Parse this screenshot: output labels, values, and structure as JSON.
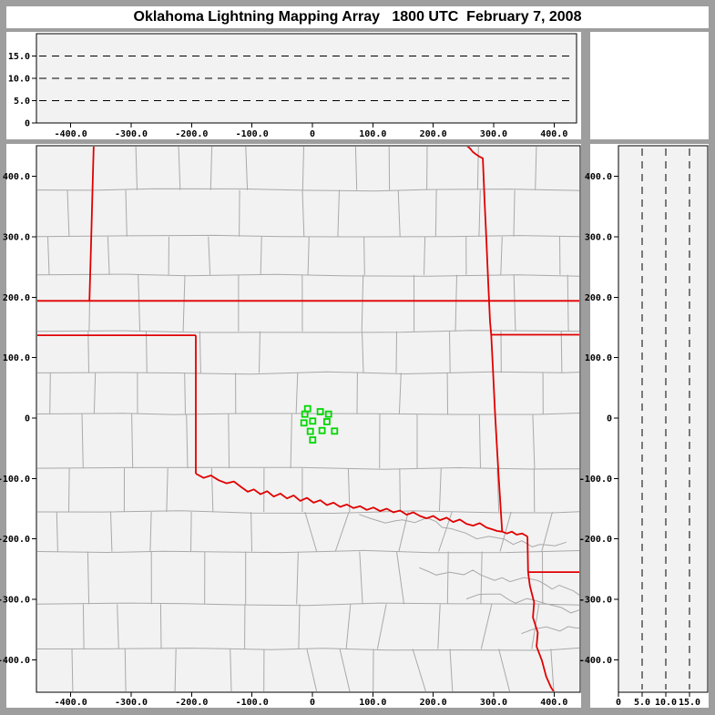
{
  "title": "Oklahoma Lightning Mapping Array   1800 UTC  February 7, 2008",
  "colors": {
    "frame_bg": "#9e9e9e",
    "widget_bg": "#ffffff",
    "plot_bg": "#f2f2f2",
    "axis": "#000000",
    "dash_line": "#000000",
    "county_line": "#a9a9a9",
    "state_line": "#e10000",
    "station": "#00d800",
    "label_text": "#000000"
  },
  "panels": {
    "top": {
      "name": "altitude-vs-east-west",
      "x_ticks": {
        "values": [
          -400,
          -300,
          -200,
          -100,
          0,
          100,
          200,
          300,
          400
        ],
        "labels": [
          "-400.0",
          "-300.0",
          "-200.0",
          "-100.0",
          "0",
          "100.0",
          "200.0",
          "300.0",
          "400.0"
        ]
      },
      "y_ticks": {
        "values": [
          0,
          5,
          10,
          15
        ],
        "labels": [
          "0",
          "5.0",
          "10.0",
          "15.0"
        ]
      },
      "gridlines_km": [
        5,
        10,
        15
      ],
      "alt_range_km": [
        0,
        20
      ]
    },
    "main": {
      "name": "plan-view-map",
      "x_ticks": {
        "values": [
          -400,
          -300,
          -200,
          -100,
          0,
          100,
          200,
          300,
          400
        ],
        "labels": [
          "-400.0",
          "-300.0",
          "-200.0",
          "-100.0",
          "0",
          "100.0",
          "200.0",
          "300.0",
          "400.0"
        ]
      },
      "y_ticks": {
        "values": [
          400,
          300,
          200,
          100,
          0,
          -100,
          -200,
          -300,
          -400
        ],
        "labels": [
          "400.0",
          "300.0",
          "200.0",
          "100.0",
          "0",
          "-100.0",
          "-200.0",
          "-300.0",
          "-400.0"
        ]
      },
      "ew_range_km": [
        -457,
        443
      ],
      "ns_range_km": [
        -454,
        451
      ]
    },
    "right": {
      "name": "altitude-vs-north-south",
      "x_ticks": {
        "values": [
          0,
          5,
          10,
          15
        ],
        "labels": [
          "0",
          "5.0",
          "10.0",
          "15.0"
        ]
      },
      "y_ticks": {
        "values": [
          400,
          300,
          200,
          100,
          0,
          -100,
          -200,
          -300,
          -400
        ],
        "labels": [
          "400.0",
          "300.0",
          "200.0",
          "100.0",
          "0",
          "-100.0",
          "-200.0",
          "-300.0",
          "-400.0"
        ]
      },
      "gridlines_km": [
        5,
        10,
        15
      ],
      "alt_range_km": [
        0,
        19
      ]
    },
    "corner": {
      "name": "blank-panel"
    }
  },
  "stations_km": [
    [
      -8,
      15.5
    ],
    [
      13,
      10.6
    ],
    [
      26.7,
      6.5
    ],
    [
      -12.5,
      6.5
    ],
    [
      0.5,
      -5
    ],
    [
      -14,
      -8
    ],
    [
      24,
      -6
    ],
    [
      -3.5,
      -22
    ],
    [
      16,
      -20.7
    ],
    [
      36.7,
      -21.6
    ],
    [
      0.5,
      -36.2
    ]
  ],
  "state_borders_km": [
    {
      "name": "kansas-south-37n",
      "pts": [
        [
          -458,
          194
        ],
        [
          445,
          194
        ]
      ]
    },
    {
      "name": "kansas-colorado",
      "pts": [
        [
          -362,
          452
        ],
        [
          -364,
          380
        ],
        [
          -366,
          300
        ],
        [
          -369,
          194
        ]
      ]
    },
    {
      "name": "panhandle-south-36-5n",
      "pts": [
        [
          -458,
          137
        ],
        [
          -193,
          137
        ]
      ]
    },
    {
      "name": "texas-oklahoma-100w",
      "pts": [
        [
          -193,
          137
        ],
        [
          -193,
          -92
        ]
      ]
    },
    {
      "name": "red-river",
      "pts": [
        [
          -193,
          -92
        ],
        [
          -180,
          -99
        ],
        [
          -168,
          -95
        ],
        [
          -155,
          -103
        ],
        [
          -142,
          -108
        ],
        [
          -130,
          -105
        ],
        [
          -118,
          -114
        ],
        [
          -107,
          -122
        ],
        [
          -97,
          -118
        ],
        [
          -86,
          -126
        ],
        [
          -75,
          -121
        ],
        [
          -64,
          -130
        ],
        [
          -53,
          -125
        ],
        [
          -42,
          -133
        ],
        [
          -31,
          -128
        ],
        [
          -20,
          -137
        ],
        [
          -9,
          -132
        ],
        [
          2,
          -140
        ],
        [
          13,
          -136
        ],
        [
          24,
          -144
        ],
        [
          35,
          -140
        ],
        [
          46,
          -147
        ],
        [
          57,
          -143
        ],
        [
          68,
          -149
        ],
        [
          79,
          -146
        ],
        [
          90,
          -152
        ],
        [
          101,
          -148
        ],
        [
          112,
          -154
        ],
        [
          123,
          -150
        ],
        [
          134,
          -156
        ],
        [
          145,
          -153
        ],
        [
          156,
          -160
        ],
        [
          167,
          -156
        ],
        [
          178,
          -162
        ],
        [
          189,
          -166
        ],
        [
          200,
          -162
        ],
        [
          211,
          -169
        ],
        [
          222,
          -165
        ],
        [
          233,
          -172
        ],
        [
          244,
          -168
        ],
        [
          255,
          -175
        ],
        [
          266,
          -178
        ],
        [
          277,
          -174
        ],
        [
          288,
          -181
        ],
        [
          297,
          -184
        ],
        [
          306,
          -187
        ],
        [
          314,
          -188
        ],
        [
          322,
          -191
        ],
        [
          330,
          -188
        ],
        [
          338,
          -193
        ],
        [
          347,
          -191
        ],
        [
          356,
          -196
        ]
      ]
    },
    {
      "name": "missouri-arkansas-east",
      "pts": [
        [
          253,
          452
        ],
        [
          258,
          449
        ],
        [
          262,
          445
        ],
        [
          265,
          441
        ],
        [
          270,
          437
        ],
        [
          276,
          433
        ],
        [
          282,
          430
        ],
        [
          285,
          360
        ],
        [
          288,
          295
        ],
        [
          291,
          225
        ],
        [
          294,
          160
        ],
        [
          296,
          138
        ],
        [
          299,
          78
        ],
        [
          302,
          14
        ],
        [
          305,
          -40
        ],
        [
          308,
          -92
        ],
        [
          311,
          -140
        ],
        [
          314,
          -188
        ]
      ]
    },
    {
      "name": "texas-arkansas",
      "pts": [
        [
          356,
          -196
        ],
        [
          357,
          -255
        ]
      ]
    },
    {
      "name": "arkansas-louisiana-33n",
      "pts": [
        [
          357,
          -255
        ],
        [
          445,
          -255
        ]
      ]
    },
    {
      "name": "missouri-arkansas-36-5n",
      "pts": [
        [
          296,
          138
        ],
        [
          445,
          138
        ]
      ]
    },
    {
      "name": "texas-louisiana",
      "pts": [
        [
          357,
          -255
        ],
        [
          360,
          -278
        ],
        [
          367,
          -305
        ],
        [
          365,
          -330
        ],
        [
          373,
          -355
        ],
        [
          371,
          -378
        ],
        [
          380,
          -402
        ],
        [
          387,
          -428
        ],
        [
          395,
          -446
        ],
        [
          403,
          -458
        ]
      ]
    }
  ]
}
